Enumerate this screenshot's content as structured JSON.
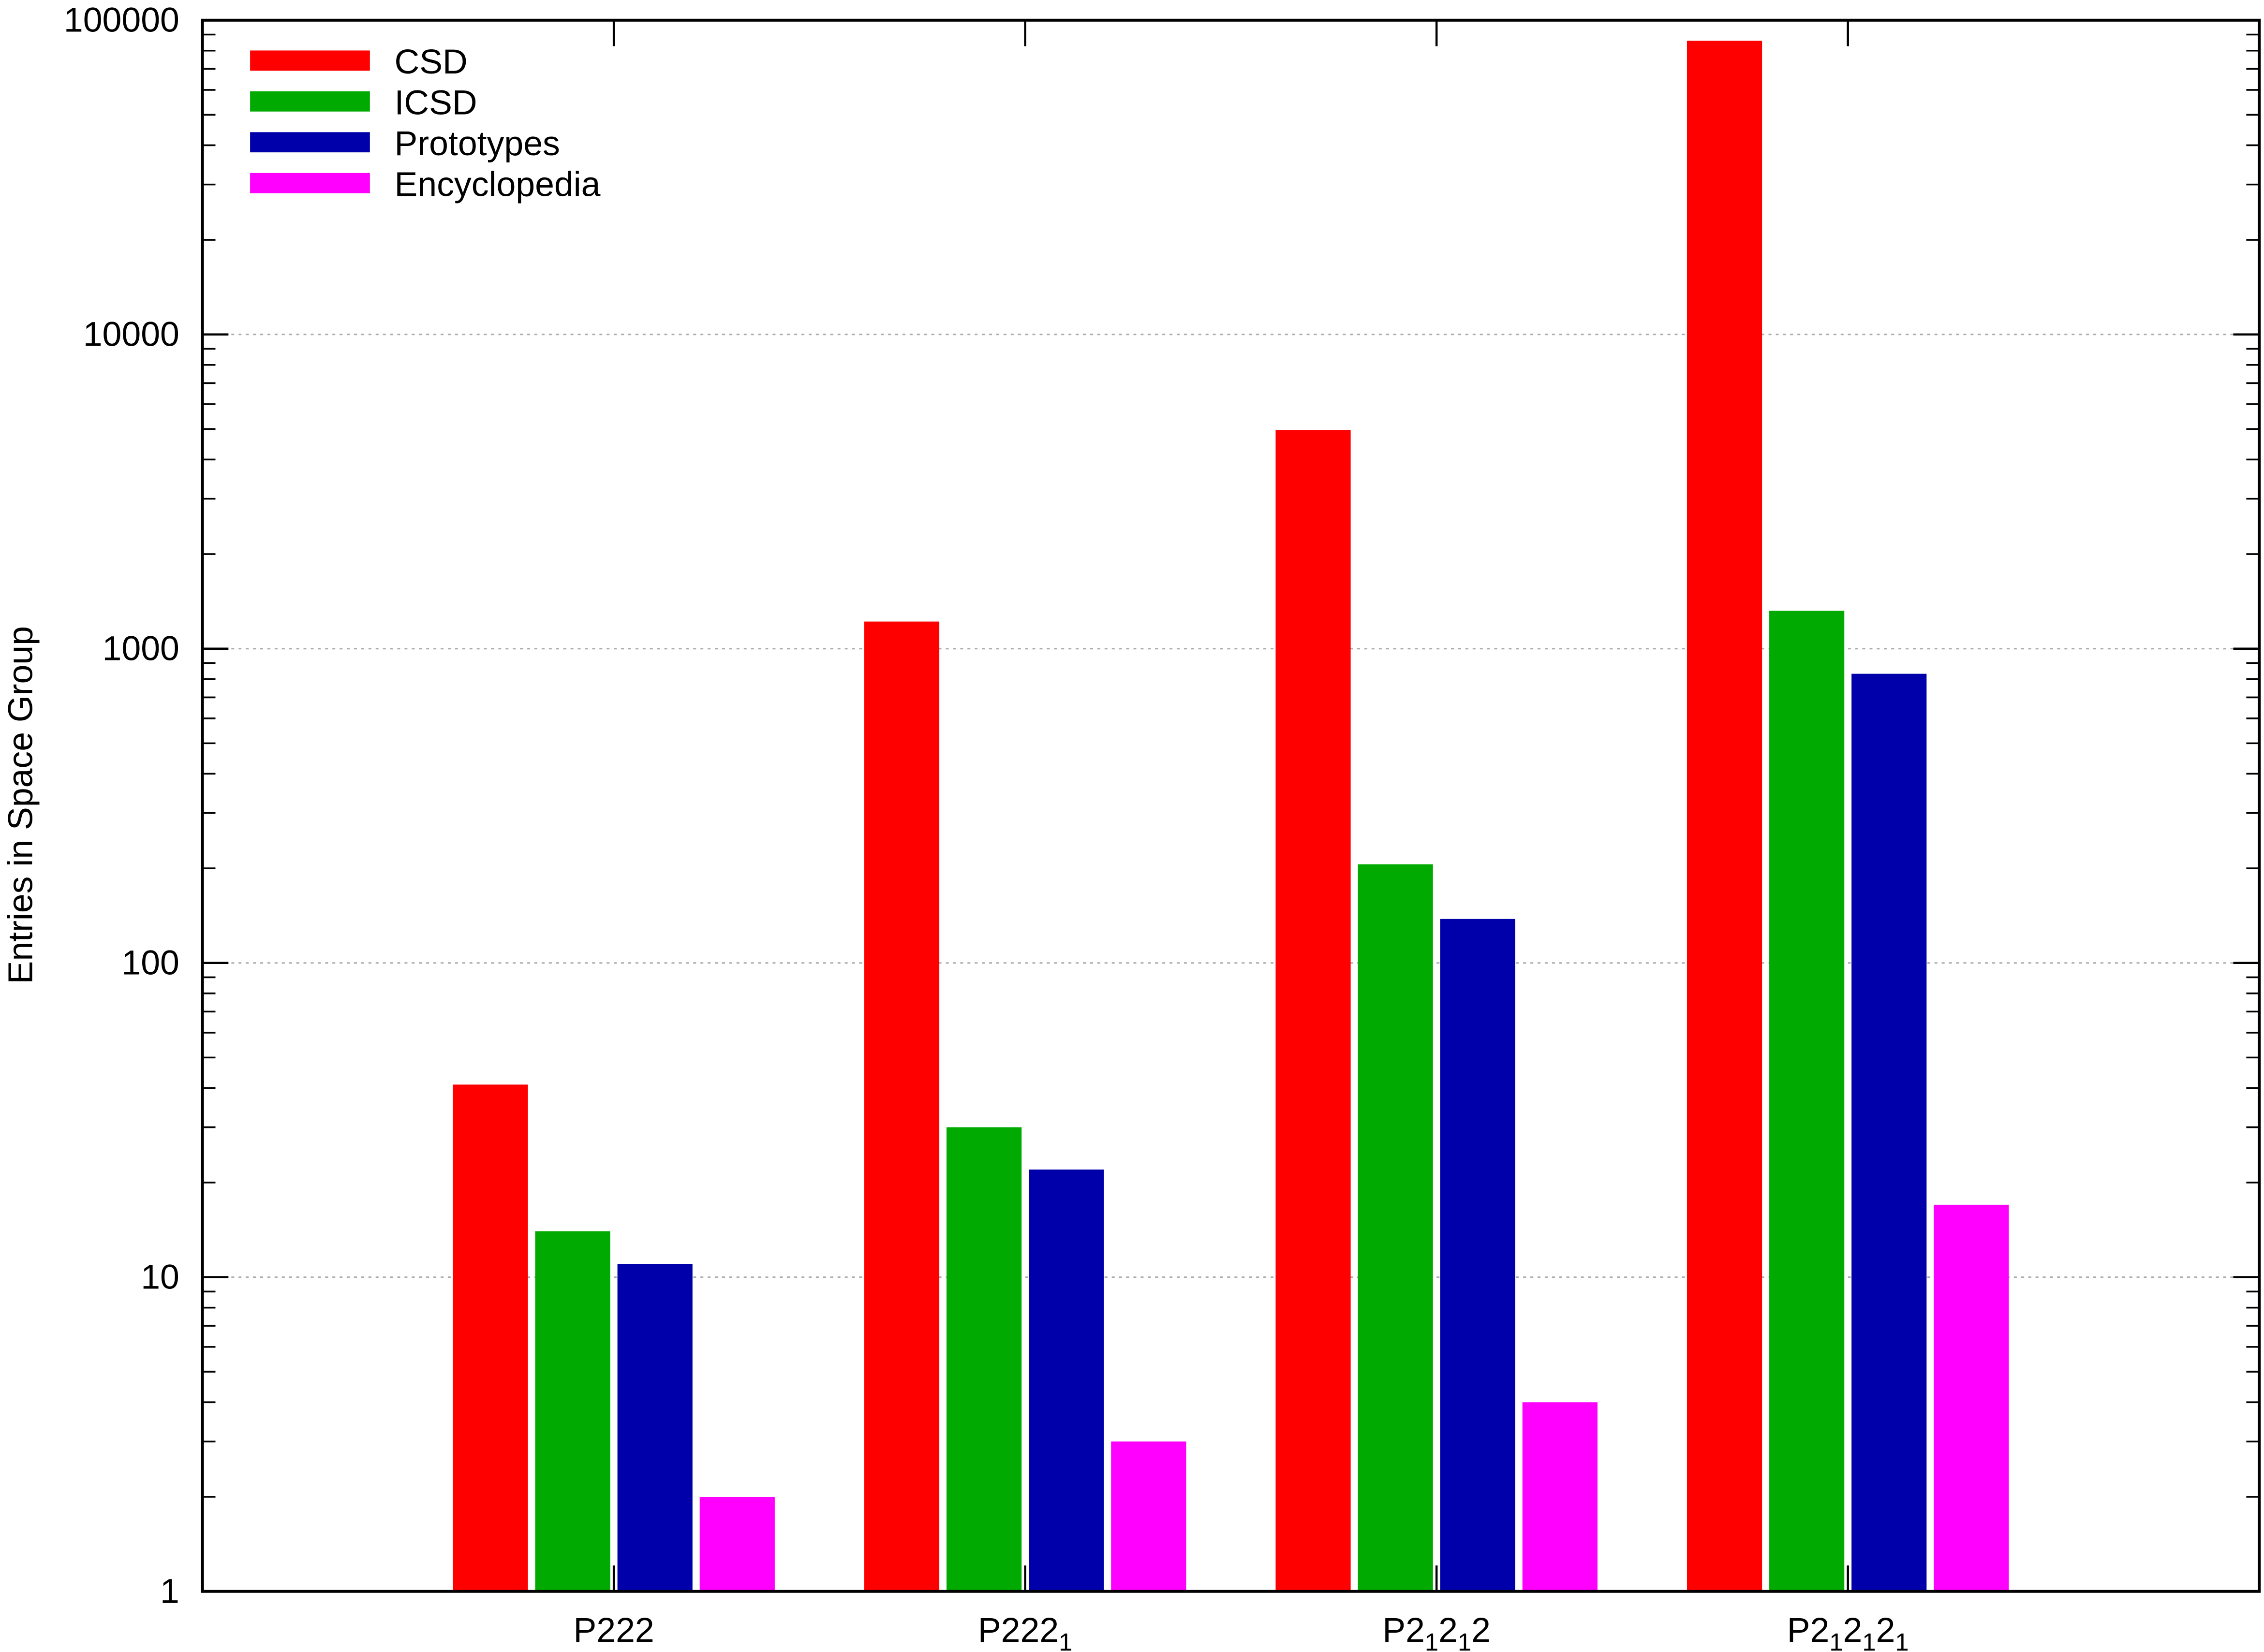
{
  "chart_data": {
    "type": "bar",
    "title": "",
    "xlabel": "",
    "ylabel": "Entries in Space Group",
    "yscale": "log",
    "ylim": [
      1,
      100000
    ],
    "yticks": [
      "1",
      "10",
      "100",
      "1000",
      "10000",
      "100000"
    ],
    "grid": "horizontal dotted at decades",
    "legend_position": "top-left",
    "categories": [
      [
        {
          "t": "P222"
        }
      ],
      [
        {
          "t": "P222"
        },
        {
          "t": "1",
          "sub": true
        }
      ],
      [
        {
          "t": "P2"
        },
        {
          "t": "1",
          "sub": true
        },
        {
          "t": "2"
        },
        {
          "t": "1",
          "sub": true
        },
        {
          "t": "2"
        }
      ],
      [
        {
          "t": "P2"
        },
        {
          "t": "1",
          "sub": true
        },
        {
          "t": "2"
        },
        {
          "t": "1",
          "sub": true
        },
        {
          "t": "2"
        },
        {
          "t": "1",
          "sub": true
        }
      ]
    ],
    "series": [
      {
        "name": "CSD",
        "color": "#ff0000",
        "values": [
          41,
          1220,
          4970,
          86000
        ]
      },
      {
        "name": "ICSD",
        "color": "#00aa00",
        "values": [
          14,
          30,
          206,
          1320
        ]
      },
      {
        "name": "Prototypes",
        "color": "#0000aa",
        "values": [
          11,
          22,
          138,
          832
        ]
      },
      {
        "name": "Encyclopedia",
        "color": "#ff00ff",
        "values": [
          2,
          3,
          4,
          17
        ]
      }
    ]
  }
}
